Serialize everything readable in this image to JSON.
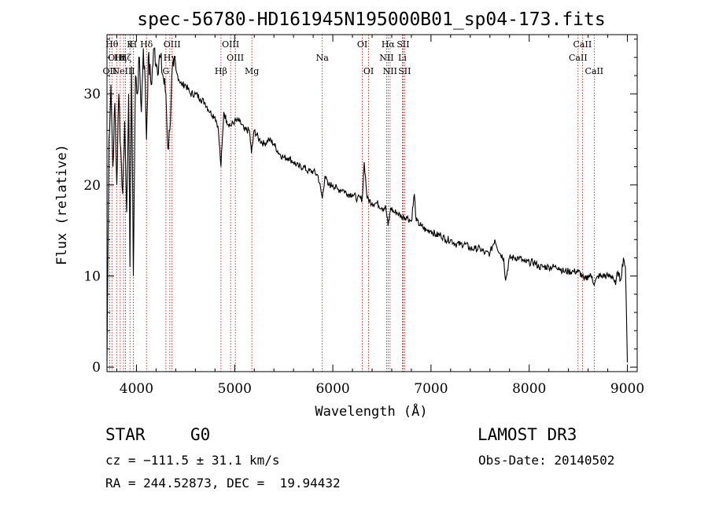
{
  "chart_data": {
    "type": "line",
    "title": "spec-56780-HD161945N195000B01_sp04-173.fits",
    "xlabel": "Wavelength (Å)",
    "ylabel": "Flux (relative)",
    "xlim": [
      3700,
      9100
    ],
    "ylim": [
      -0.5,
      36.5
    ],
    "xticks": [
      4000,
      5000,
      6000,
      7000,
      8000,
      9000
    ],
    "yticks": [
      0,
      10,
      20,
      30
    ],
    "xtick_labels": [
      "4000",
      "5000",
      "6000",
      "7000",
      "8000",
      "9000"
    ],
    "ytick_labels": [
      "0",
      "10",
      "20",
      "30"
    ],
    "line_color": "#000000",
    "marker_color": "#cc0000",
    "series": [
      {
        "name": "flux",
        "x": [
          3700,
          3720,
          3740,
          3760,
          3780,
          3800,
          3820,
          3840,
          3860,
          3880,
          3900,
          3920,
          3934,
          3950,
          3968,
          3990,
          4010,
          4030,
          4050,
          4070,
          4090,
          4102,
          4120,
          4150,
          4180,
          4210,
          4240,
          4270,
          4300,
          4320,
          4340,
          4360,
          4380,
          4420,
          4460,
          4500,
          4550,
          4600,
          4650,
          4700,
          4750,
          4800,
          4830,
          4861,
          4890,
          4920,
          4960,
          5000,
          5050,
          5100,
          5150,
          5172,
          5200,
          5250,
          5300,
          5350,
          5400,
          5450,
          5500,
          5550,
          5600,
          5650,
          5700,
          5750,
          5800,
          5850,
          5893,
          5920,
          5950,
          6000,
          6050,
          6100,
          6150,
          6200,
          6250,
          6300,
          6320,
          6350,
          6400,
          6450,
          6500,
          6540,
          6563,
          6590,
          6620,
          6650,
          6700,
          6750,
          6800,
          6830,
          6850,
          6900,
          6950,
          7000,
          7050,
          7100,
          7150,
          7200,
          7250,
          7300,
          7350,
          7400,
          7450,
          7500,
          7550,
          7600,
          7650,
          7700,
          7740,
          7760,
          7800,
          7850,
          7900,
          7950,
          8000,
          8050,
          8100,
          8150,
          8200,
          8250,
          8300,
          8350,
          8400,
          8450,
          8500,
          8542,
          8560,
          8600,
          8640,
          8662,
          8700,
          8750,
          8800,
          8850,
          8880,
          8900,
          8930,
          8960,
          8980,
          9000
        ],
        "y": [
          0.5,
          25,
          31,
          22,
          29,
          20,
          30,
          24,
          19,
          27,
          17,
          30,
          11,
          33,
          10,
          32,
          30,
          34,
          28,
          35,
          31,
          25,
          34,
          31,
          35,
          33,
          34,
          32,
          30,
          24,
          26,
          32,
          33,
          32,
          31,
          31,
          30,
          30,
          29.5,
          29,
          28,
          27.5,
          26.5,
          22,
          28,
          27,
          26.5,
          27,
          27,
          26,
          26,
          23.5,
          26,
          25,
          24.5,
          25,
          24.5,
          23.5,
          23,
          23,
          22.5,
          22,
          22,
          21.5,
          21.5,
          21,
          18.5,
          21,
          20,
          20,
          19.5,
          19.5,
          19,
          19,
          18.5,
          18.5,
          22.5,
          18.5,
          18,
          18,
          17.5,
          17.5,
          15.5,
          17.5,
          17,
          17,
          16.5,
          16.5,
          16,
          19,
          16,
          15.5,
          15,
          15,
          14.5,
          14.5,
          14,
          14,
          13.5,
          13.5,
          13.5,
          13,
          13,
          13,
          12.5,
          12.5,
          14,
          12.5,
          12,
          9.5,
          12,
          12,
          12,
          11.5,
          11.5,
          11.5,
          11,
          11,
          11,
          11,
          11,
          10.5,
          10.5,
          10.5,
          10.5,
          10,
          9.5,
          10,
          10,
          9,
          10,
          10,
          10,
          10,
          9,
          10.5,
          9.5,
          12,
          11,
          0.5
        ]
      }
    ],
    "lines": [
      {
        "x": 3727,
        "label": "OII",
        "row": 2
      },
      {
        "x": 3750,
        "label": "Hθ",
        "row": 0
      },
      {
        "x": 3798,
        "label": "OIII",
        "row": 1
      },
      {
        "x": 3835,
        "label": "Hη",
        "row": 1
      },
      {
        "x": 3869,
        "label": "NeIII",
        "row": 2
      },
      {
        "x": 3889,
        "label": "Hζ",
        "row": 1
      },
      {
        "x": 3934,
        "label": "K",
        "row": 0
      },
      {
        "x": 3968,
        "label": "H",
        "row": 0
      },
      {
        "x": 4102,
        "label": "Hδ",
        "row": 0
      },
      {
        "x": 4300,
        "label": "G",
        "row": 2
      },
      {
        "x": 4340,
        "label": "Hγ",
        "row": 1
      },
      {
        "x": 4363,
        "label": "OIII",
        "row": 0
      },
      {
        "x": 4861,
        "label": "Hβ",
        "row": 2
      },
      {
        "x": 4959,
        "label": "OIII",
        "row": 0
      },
      {
        "x": 5007,
        "label": "OIII",
        "row": 1
      },
      {
        "x": 5175,
        "label": "Mg",
        "row": 2
      },
      {
        "x": 5893,
        "label": "Na",
        "row": 1
      },
      {
        "x": 6300,
        "label": "OI",
        "row": 0
      },
      {
        "x": 6364,
        "label": "OI",
        "row": 2
      },
      {
        "x": 6548,
        "label": "NII",
        "row": 1
      },
      {
        "x": 6563,
        "label": "Hα",
        "row": 0
      },
      {
        "x": 6583,
        "label": "NII",
        "row": 2
      },
      {
        "x": 6708,
        "label": "Li",
        "row": 1
      },
      {
        "x": 6716,
        "label": "SII",
        "row": 0
      },
      {
        "x": 6731,
        "label": "SII",
        "row": 2
      },
      {
        "x": 8498,
        "label": "CaII",
        "row": 1
      },
      {
        "x": 8542,
        "label": "CaII",
        "row": 0
      },
      {
        "x": 8662,
        "label": "CaII",
        "row": 2
      }
    ]
  },
  "footer": {
    "object_class": "STAR",
    "subclass": "G0",
    "survey": "LAMOST DR3",
    "cz": "cz = −111.5 ± 31.1 km/s",
    "obs_date": "Obs-Date: 20140502",
    "coords": "RA = 244.52873, DEC =  19.94432"
  }
}
